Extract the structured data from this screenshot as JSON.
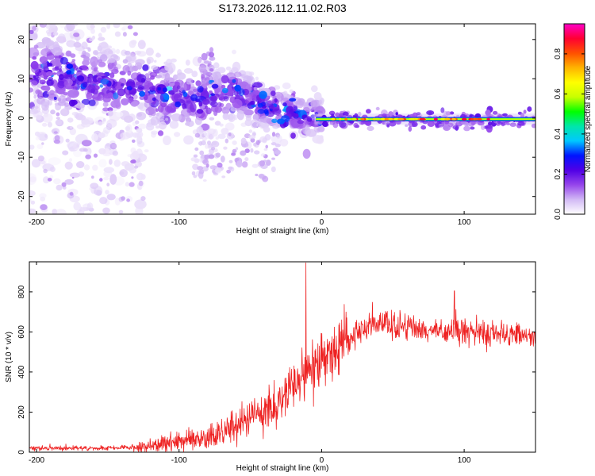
{
  "figure_title": "S173.2026.112.11.02.R03",
  "chart_data": [
    {
      "type": "heatmap",
      "title": "S173.2026.112.11.02.R03",
      "xlabel": "Height of straight line (km)",
      "ylabel": "Frequency (Hz)",
      "xlim": [
        -205,
        150
      ],
      "ylim": [
        -24.5,
        24
      ],
      "xticks": [
        -200,
        -100,
        0,
        100
      ],
      "xtick_labels": [
        "-200",
        "-100",
        "0",
        "100"
      ],
      "yticks": [
        20,
        10,
        0,
        -10,
        -20
      ],
      "ytick_labels": [
        "20",
        "10",
        "0",
        "-10",
        "-20"
      ],
      "colorbar": {
        "label": "Normalized spectral amplitude",
        "range": [
          0.0,
          0.95
        ],
        "ticks": [
          0.0,
          0.2,
          0.4,
          0.6,
          0.8
        ],
        "tick_labels": [
          "0.0",
          "0.2",
          "0.4",
          "0.6",
          "0.8"
        ],
        "colormap_stops": [
          "#ffffff",
          "#d2b9f5",
          "#9646eb",
          "#5000e6",
          "#0014ff",
          "#00c8ff",
          "#00e6aa",
          "#00ff00",
          "#c8ff00",
          "#ffff00",
          "#ffb400",
          "#ff5000",
          "#ff0032",
          "#ff00c8"
        ]
      },
      "features": {
        "bright_line": {
          "x_range": [
            0,
            150
          ],
          "freq_hz": -0.3,
          "peak_amplitude": 0.9
        },
        "patch_centers_hz": [
          [
            -200,
            12
          ],
          [
            -170,
            10
          ],
          [
            -140,
            8
          ],
          [
            -110,
            6
          ],
          [
            -85,
            4
          ],
          [
            -60,
            7
          ],
          [
            -40,
            3
          ],
          [
            -20,
            1
          ],
          [
            0,
            0
          ]
        ],
        "diffuse_region_x_range": [
          -205,
          -125
        ]
      }
    },
    {
      "type": "line",
      "xlabel": "Height of straight line (km)",
      "ylabel": "SNR (10 * v/v)",
      "xlim": [
        -205,
        150
      ],
      "ylim": [
        0,
        950
      ],
      "xticks": [
        -200,
        -100,
        0,
        100
      ],
      "xtick_labels": [
        "-200",
        "-100",
        "0",
        "100"
      ],
      "yticks": [
        0,
        200,
        400,
        600,
        800
      ],
      "ytick_labels": [
        "0",
        "200",
        "400",
        "600",
        "800"
      ],
      "color": "#ee2222",
      "series": [
        {
          "name": "SNR",
          "x": [
            -205,
            -180,
            -150,
            -130,
            -120,
            -110,
            -100,
            -90,
            -80,
            -70,
            -60,
            -50,
            -40,
            -30,
            -20,
            -15,
            -10,
            -5,
            0,
            10,
            20,
            30,
            40,
            50,
            60,
            70,
            80,
            90,
            100,
            110,
            120,
            130,
            140,
            150
          ],
          "y": [
            20,
            20,
            20,
            25,
            30,
            45,
            55,
            60,
            70,
            90,
            130,
            170,
            200,
            240,
            330,
            370,
            400,
            430,
            460,
            510,
            570,
            620,
            640,
            630,
            620,
            610,
            605,
            600,
            600,
            600,
            590,
            580,
            580,
            575
          ],
          "spikes": [
            {
              "x": -11,
              "y": 945
            },
            {
              "x": 93,
              "y": 805
            }
          ]
        }
      ]
    }
  ]
}
